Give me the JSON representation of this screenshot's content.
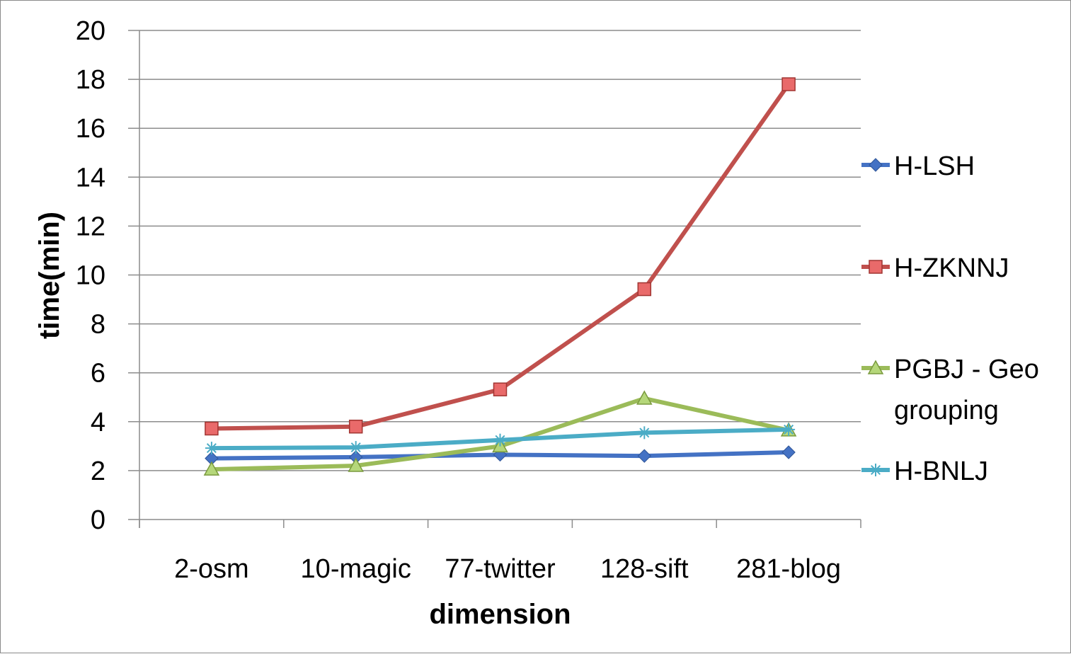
{
  "chart_data": {
    "type": "line",
    "title": "",
    "xlabel": "dimension",
    "ylabel": "time(min)",
    "categories": [
      "2-osm",
      "10-magic",
      "77-twitter",
      "128-sift",
      "281-blog"
    ],
    "ylim": [
      0,
      20
    ],
    "yticks": [
      "0",
      "2",
      "4",
      "6",
      "8",
      "10",
      "12",
      "14",
      "16",
      "18",
      "20"
    ],
    "grid": "horizontal",
    "legend_position": "right",
    "series": [
      {
        "name": "H-LSH",
        "values": [
          2.5,
          2.55,
          2.65,
          2.6,
          2.75
        ],
        "color": "#4472C4",
        "marker": "diamond"
      },
      {
        "name": "H-ZKNNJ",
        "values": [
          3.72,
          3.8,
          5.32,
          9.42,
          17.8
        ],
        "color": "#C0504D",
        "marker": "square"
      },
      {
        "name": "PGBJ - Geo grouping",
        "legend_lines": [
          "PGBJ - Geo",
          "grouping"
        ],
        "values": [
          2.05,
          2.2,
          3.0,
          4.95,
          3.65
        ],
        "color": "#9BBB59",
        "marker": "triangle"
      },
      {
        "name": "H-BNLJ",
        "values": [
          2.92,
          2.95,
          3.25,
          3.55,
          3.68
        ],
        "color": "#4BACC6",
        "marker": "star"
      }
    ]
  }
}
